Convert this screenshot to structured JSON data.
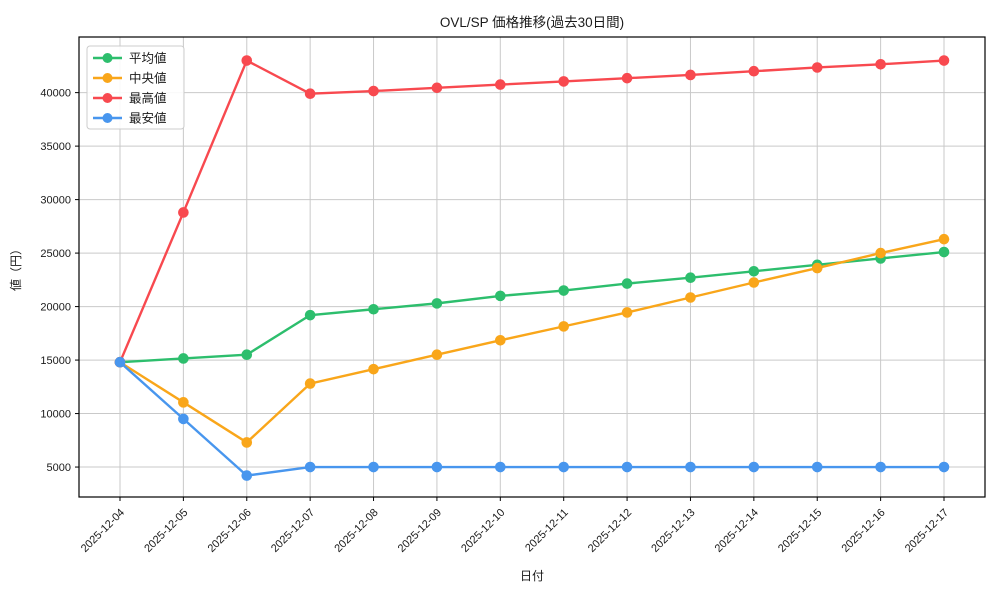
{
  "chart_data": {
    "type": "line",
    "title": "OVL/SP 価格推移(過去30日間)",
    "xlabel": "日付",
    "ylabel": "値（円）",
    "categories": [
      "2025-12-04",
      "2025-12-05",
      "2025-12-06",
      "2025-12-07",
      "2025-12-08",
      "2025-12-09",
      "2025-12-10",
      "2025-12-11",
      "2025-12-12",
      "2025-12-13",
      "2025-12-14",
      "2025-12-15",
      "2025-12-16",
      "2025-12-17"
    ],
    "series": [
      {
        "name": "平均値",
        "role": "average",
        "color": "#2dbe6d",
        "values": [
          14800,
          15150,
          15500,
          19200,
          19750,
          20300,
          21000,
          21500,
          22150,
          22700,
          23300,
          23900,
          24500,
          25100
        ]
      },
      {
        "name": "中央値",
        "role": "median",
        "color": "#f9a61a",
        "values": [
          14800,
          11050,
          7300,
          12800,
          14150,
          15500,
          16850,
          18150,
          19450,
          20850,
          22250,
          23600,
          25000,
          26300
        ]
      },
      {
        "name": "最高値",
        "role": "highest",
        "color": "#f8494f",
        "values": [
          14800,
          28800,
          43000,
          39900,
          40150,
          40450,
          40750,
          41050,
          41350,
          41650,
          42000,
          42350,
          42650,
          43000
        ]
      },
      {
        "name": "最安値",
        "role": "lowest",
        "color": "#4896ee",
        "values": [
          14800,
          9500,
          4200,
          5000,
          5000,
          5000,
          5000,
          5000,
          5000,
          5000,
          5000,
          5000,
          5000,
          5000
        ]
      }
    ],
    "yticks": [
      5000,
      10000,
      15000,
      20000,
      25000,
      30000,
      35000,
      40000
    ],
    "ylim": [
      2200,
      45200
    ],
    "grid": true,
    "grid_color": "#c9c9c9",
    "axis_color": "#000000",
    "legend_position": "upper left"
  }
}
